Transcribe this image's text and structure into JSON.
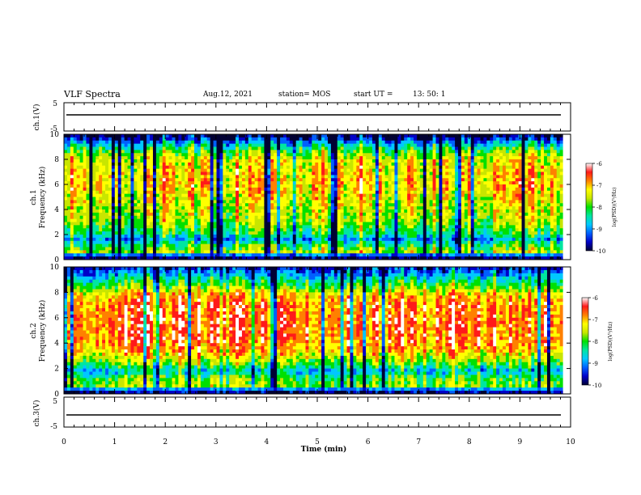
{
  "header": {
    "title": "VLF Spectra",
    "date": "Aug.12, 2021",
    "station": "station= MOS",
    "start_label": "start  UT  =",
    "start_time": "13: 50: 1"
  },
  "colors": {
    "spectrogram": [
      "#000033",
      "#0000c8",
      "#0060ff",
      "#00c8ff",
      "#00e6a0",
      "#00e000",
      "#c8e600",
      "#ffff00",
      "#ff8000",
      "#ff1a1a",
      "#ffffff"
    ]
  },
  "chart_data": [
    {
      "type": "line",
      "panel": "ch1-voltage",
      "ylabel": "ch.1(V)",
      "ylim": [
        -5,
        5
      ],
      "yticks": [
        "5",
        "-5"
      ],
      "series": [
        {
          "x": [
            0,
            9.85
          ],
          "y": [
            0,
            0
          ]
        }
      ]
    },
    {
      "type": "heatmap",
      "panel": "ch1-spectrogram",
      "ylabel_top": "ch.1",
      "ylabel": "Frequency  (kHz)",
      "ylim": [
        0,
        10
      ],
      "yticks": [
        "0",
        "2",
        "4",
        "6",
        "8",
        "10"
      ],
      "colorbar": {
        "label": "log(PSD)(V²/Hz)",
        "range": [
          -10,
          -6
        ],
        "ticks": [
          "-6",
          "-7",
          "-8",
          "-9",
          "-10"
        ]
      },
      "profile": [
        {
          "f": 0.0,
          "v": -9.9
        },
        {
          "f": 0.3,
          "v": -9.6
        },
        {
          "f": 0.6,
          "v": -7.6
        },
        {
          "f": 1.2,
          "v": -8.2
        },
        {
          "f": 1.6,
          "v": -9.0
        },
        {
          "f": 2.0,
          "v": -8.3
        },
        {
          "f": 3.0,
          "v": -7.7
        },
        {
          "f": 4.0,
          "v": -7.5
        },
        {
          "f": 5.0,
          "v": -7.3
        },
        {
          "f": 6.0,
          "v": -7.1
        },
        {
          "f": 7.0,
          "v": -7.2
        },
        {
          "f": 8.0,
          "v": -7.4
        },
        {
          "f": 8.6,
          "v": -7.9
        },
        {
          "f": 9.0,
          "v": -8.4
        },
        {
          "f": 9.4,
          "v": -9.1
        },
        {
          "f": 9.7,
          "v": -9.7
        },
        {
          "f": 10.0,
          "v": -10.0
        }
      ]
    },
    {
      "type": "heatmap",
      "panel": "ch2-spectrogram",
      "ylabel_top": "ch.2",
      "ylabel": "Frequency  (kHz)",
      "ylim": [
        0,
        10
      ],
      "yticks": [
        "0",
        "2",
        "4",
        "6",
        "8",
        "10"
      ],
      "colorbar": {
        "label": "log(PSD)(V²/Hz)",
        "range": [
          -10,
          -6
        ],
        "ticks": [
          "-6",
          "-7",
          "-8",
          "-9",
          "-10"
        ]
      },
      "profile": [
        {
          "f": 0.0,
          "v": -9.9
        },
        {
          "f": 0.3,
          "v": -9.4
        },
        {
          "f": 0.6,
          "v": -7.8
        },
        {
          "f": 1.2,
          "v": -8.0
        },
        {
          "f": 1.8,
          "v": -8.8
        },
        {
          "f": 2.4,
          "v": -7.9
        },
        {
          "f": 3.2,
          "v": -7.2
        },
        {
          "f": 4.0,
          "v": -6.8
        },
        {
          "f": 5.0,
          "v": -6.7
        },
        {
          "f": 6.0,
          "v": -6.7
        },
        {
          "f": 7.0,
          "v": -6.8
        },
        {
          "f": 7.8,
          "v": -7.1
        },
        {
          "f": 8.4,
          "v": -7.9
        },
        {
          "f": 9.0,
          "v": -8.5
        },
        {
          "f": 9.5,
          "v": -9.1
        },
        {
          "f": 10.0,
          "v": -9.6
        }
      ]
    },
    {
      "type": "line",
      "panel": "ch3-voltage",
      "ylabel": "ch.3(V)",
      "ylim": [
        -5,
        5
      ],
      "yticks": [
        "5",
        "-5"
      ],
      "series": [
        {
          "x": [
            0,
            9.85
          ],
          "y": [
            0,
            0
          ]
        }
      ]
    }
  ],
  "x_axis": {
    "label": "Time  (min)",
    "range": [
      0,
      10
    ],
    "ticks": [
      "0",
      "1",
      "2",
      "3",
      "4",
      "5",
      "6",
      "7",
      "8",
      "9",
      "10"
    ]
  }
}
